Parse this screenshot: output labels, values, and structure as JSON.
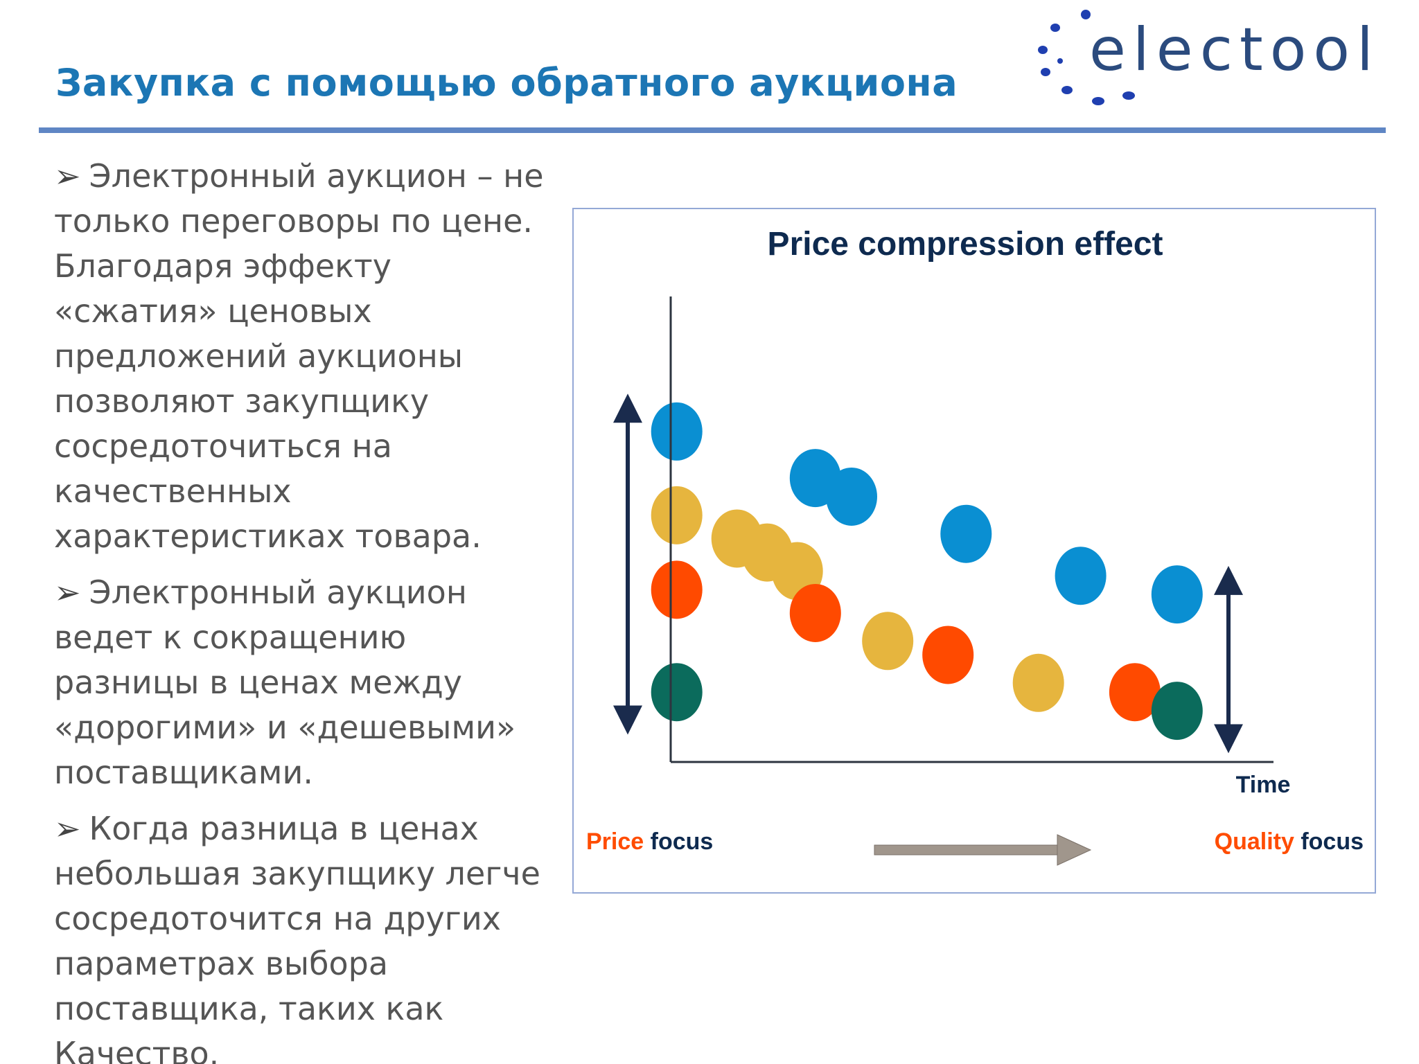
{
  "slide": {
    "title": "Закупка с помощью обратного аукциона",
    "logo_text": "electool"
  },
  "bullets": [
    {
      "marker": "➢",
      "text": "Электронный аукцион – не только переговоры по цене. Благодаря эффекту «сжатия» ценовых предложений аукционы позволяют закупщику сосредоточиться на качественных характеристиках товара."
    },
    {
      "marker": "➢",
      "text": "Электронный аукцион ведет к сокращению разницы в ценах между «дорогими» и «дешевыми» поставщиками."
    },
    {
      "marker": "➢",
      "text": "Когда разница в ценах небольшая закупщику легче сосредоточится на других параметрах выбора поставщика, таких как Качество."
    }
  ],
  "chart": {
    "title": "Price compression effect",
    "x_label": "Time",
    "price_focus": {
      "highlight": "Price",
      "rest": " focus"
    },
    "quality_focus": {
      "highlight": "Quality",
      "rest": " focus"
    }
  },
  "colors": {
    "title_blue": "#1c76b4",
    "rule_blue": "#5f86c4",
    "text_gray": "#555555",
    "chart_title": "#0e2a4f",
    "axis": "#2d3540",
    "arrow_navy": "#1a2b4d",
    "focus_orange": "#ff4c00",
    "focus_text": "#0e2a4f",
    "progress_arrow": "#a0968c",
    "dot_blue": "#0a8fd2",
    "dot_yellow": "#e6b53e",
    "dot_red": "#ff4a00",
    "dot_green": "#0b6b5c"
  },
  "chart_data": {
    "type": "scatter",
    "title": "Price compression effect",
    "xlabel": "Time",
    "ylabel": "",
    "x_ticks": "none",
    "y_ticks": "none",
    "xlim": [
      0,
      100
    ],
    "ylim": [
      0,
      100
    ],
    "grid": false,
    "series": [
      {
        "color": "#0a8fd2",
        "points": [
          [
            1,
            71
          ],
          [
            24,
            61
          ],
          [
            30,
            57
          ],
          [
            49,
            49
          ],
          [
            68,
            40
          ],
          [
            84,
            36
          ]
        ]
      },
      {
        "color": "#e6b53e",
        "points": [
          [
            1,
            53
          ],
          [
            11,
            48
          ],
          [
            16,
            45
          ],
          [
            21,
            41
          ],
          [
            36,
            26
          ],
          [
            61,
            17
          ]
        ]
      },
      {
        "color": "#ff4a00",
        "points": [
          [
            1,
            37
          ],
          [
            24,
            32
          ],
          [
            46,
            23
          ],
          [
            77,
            15
          ]
        ]
      },
      {
        "color": "#0b6b5c",
        "points": [
          [
            1,
            15
          ],
          [
            84,
            11
          ]
        ]
      }
    ],
    "range_arrows": [
      {
        "at": "start",
        "from": 76,
        "to": 9
      },
      {
        "at": "end",
        "from": 39,
        "to": 5
      }
    ],
    "legend": "none"
  }
}
